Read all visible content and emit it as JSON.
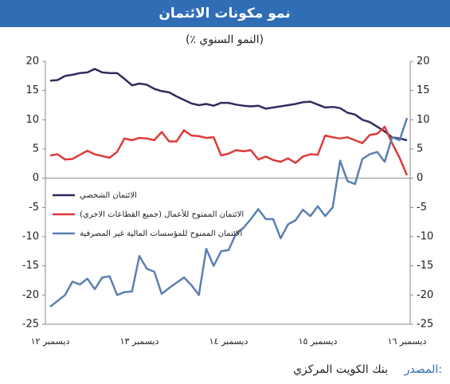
{
  "chart_data": {
    "type": "line",
    "title": "نمو مكونات الائتمان",
    "subtitle": "(٪ النمو السنوي)",
    "source_label": "المصدر:",
    "source_text": "بنك الكويت المركزي",
    "categories": [
      "ديسمبر ١٢",
      null,
      null,
      null,
      null,
      null,
      null,
      null,
      null,
      null,
      null,
      null,
      "ديسمبر ١٣",
      null,
      null,
      null,
      null,
      null,
      null,
      null,
      null,
      null,
      null,
      null,
      "ديسمبر ١٤",
      null,
      null,
      null,
      null,
      null,
      null,
      null,
      null,
      null,
      null,
      null,
      "ديسمبر ١٥",
      null,
      null,
      null,
      null,
      null,
      null,
      null,
      null,
      null,
      null,
      null,
      "ديسمبر ١٦"
    ],
    "ylim": [
      -25,
      20
    ],
    "yticks": [
      20,
      15,
      10,
      5,
      0,
      -5,
      -10,
      -15,
      -20,
      -25
    ],
    "y2lim": [
      -25,
      20
    ],
    "y2ticks": [
      20,
      15,
      10,
      5,
      0,
      -5,
      -10,
      -15,
      -20,
      -25
    ],
    "series": [
      {
        "name": "الائتمان الشخصي",
        "color": "#2e2d5e",
        "values": [
          16.7,
          16.8,
          17.5,
          17.7,
          18,
          18.1,
          18.7,
          18.1,
          18,
          18,
          17,
          15.9,
          16.2,
          16,
          15.3,
          14.9,
          14.7,
          14,
          13.4,
          12.8,
          12.5,
          12.7,
          12.4,
          12.9,
          12.9,
          12.6,
          12.4,
          12.3,
          12.4,
          11.9,
          12.1,
          12.3,
          12.5,
          12.7,
          13,
          13.1,
          12.6,
          12.1,
          12.2,
          12,
          11.2,
          10.9,
          10,
          9.6,
          8.8,
          8,
          7,
          6.8,
          6.5
        ]
      },
      {
        "name": "الائتمان الممنوح للأعمال (جميع القطاعات الاخرى)",
        "color": "#e03a3a",
        "values": [
          3.9,
          4.1,
          3.2,
          3.3,
          4,
          4.7,
          4.1,
          3.8,
          3.5,
          4.5,
          6.8,
          6.5,
          6.9,
          6.8,
          6.5,
          7.9,
          6.3,
          6.3,
          8.2,
          7.3,
          7.2,
          6.9,
          7.0,
          3.9,
          4.2,
          4.8,
          4.6,
          4.8,
          3.2,
          3.7,
          3.1,
          2.8,
          3.4,
          2.6,
          3.7,
          4.1,
          4.0,
          7.3,
          7.0,
          6.8,
          7.0,
          6.5,
          6.0,
          7.4,
          7.6,
          8.8,
          6.0,
          3.5,
          0.5
        ]
      },
      {
        "name": "الائتمان الممنوح للمؤسسات المالية غير المصرفية",
        "color": "#5b7fb3",
        "values": [
          -22,
          -21,
          -20,
          -17.7,
          -18.2,
          -17.2,
          -19,
          -17,
          -16.8,
          -20,
          -19.5,
          -19.4,
          -13.3,
          -15.5,
          -16,
          -19.8,
          -18.8,
          -17.9,
          -17,
          -18.3,
          -20,
          -12.1,
          -15,
          -12.5,
          -12.3,
          -9.5,
          -8.5,
          -7,
          -5.3,
          -7,
          -7,
          -10.3,
          -7.9,
          -7.2,
          -5.4,
          -6.5,
          -4.8,
          -6.5,
          -5,
          3,
          -0.5,
          -1,
          3.3,
          4.1,
          4.5,
          2.8,
          7,
          6.5,
          10.3
        ]
      }
    ]
  }
}
